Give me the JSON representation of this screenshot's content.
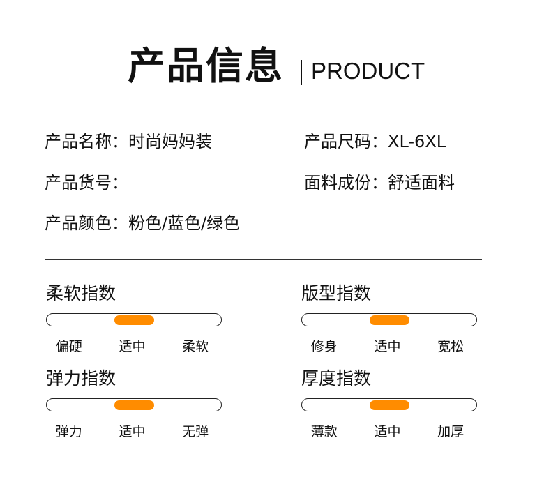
{
  "header": {
    "title": "产品信息",
    "subtitle": "PRODUCT"
  },
  "info": {
    "name": "产品名称：时尚妈妈装",
    "size": "产品尺码：XL-6XL",
    "sku": "产品货号：",
    "fabric": "面料成份：舒适面料",
    "color": "产品颜色：粉色/蓝色/绿色"
  },
  "accent": "#ff8c00",
  "indices": [
    {
      "title": "柔软指数",
      "labels": [
        "偏硬",
        "适中",
        "柔软"
      ],
      "selected": "适中",
      "level": 0.5
    },
    {
      "title": "版型指数",
      "labels": [
        "修身",
        "适中",
        "宽松"
      ],
      "selected": "适中",
      "level": 0.5
    },
    {
      "title": "弹力指数",
      "labels": [
        "弹力",
        "适中",
        "无弹"
      ],
      "selected": "适中",
      "level": 0.5
    },
    {
      "title": "厚度指数",
      "labels": [
        "薄款",
        "适中",
        "加厚"
      ],
      "selected": "适中",
      "level": 0.5
    }
  ]
}
